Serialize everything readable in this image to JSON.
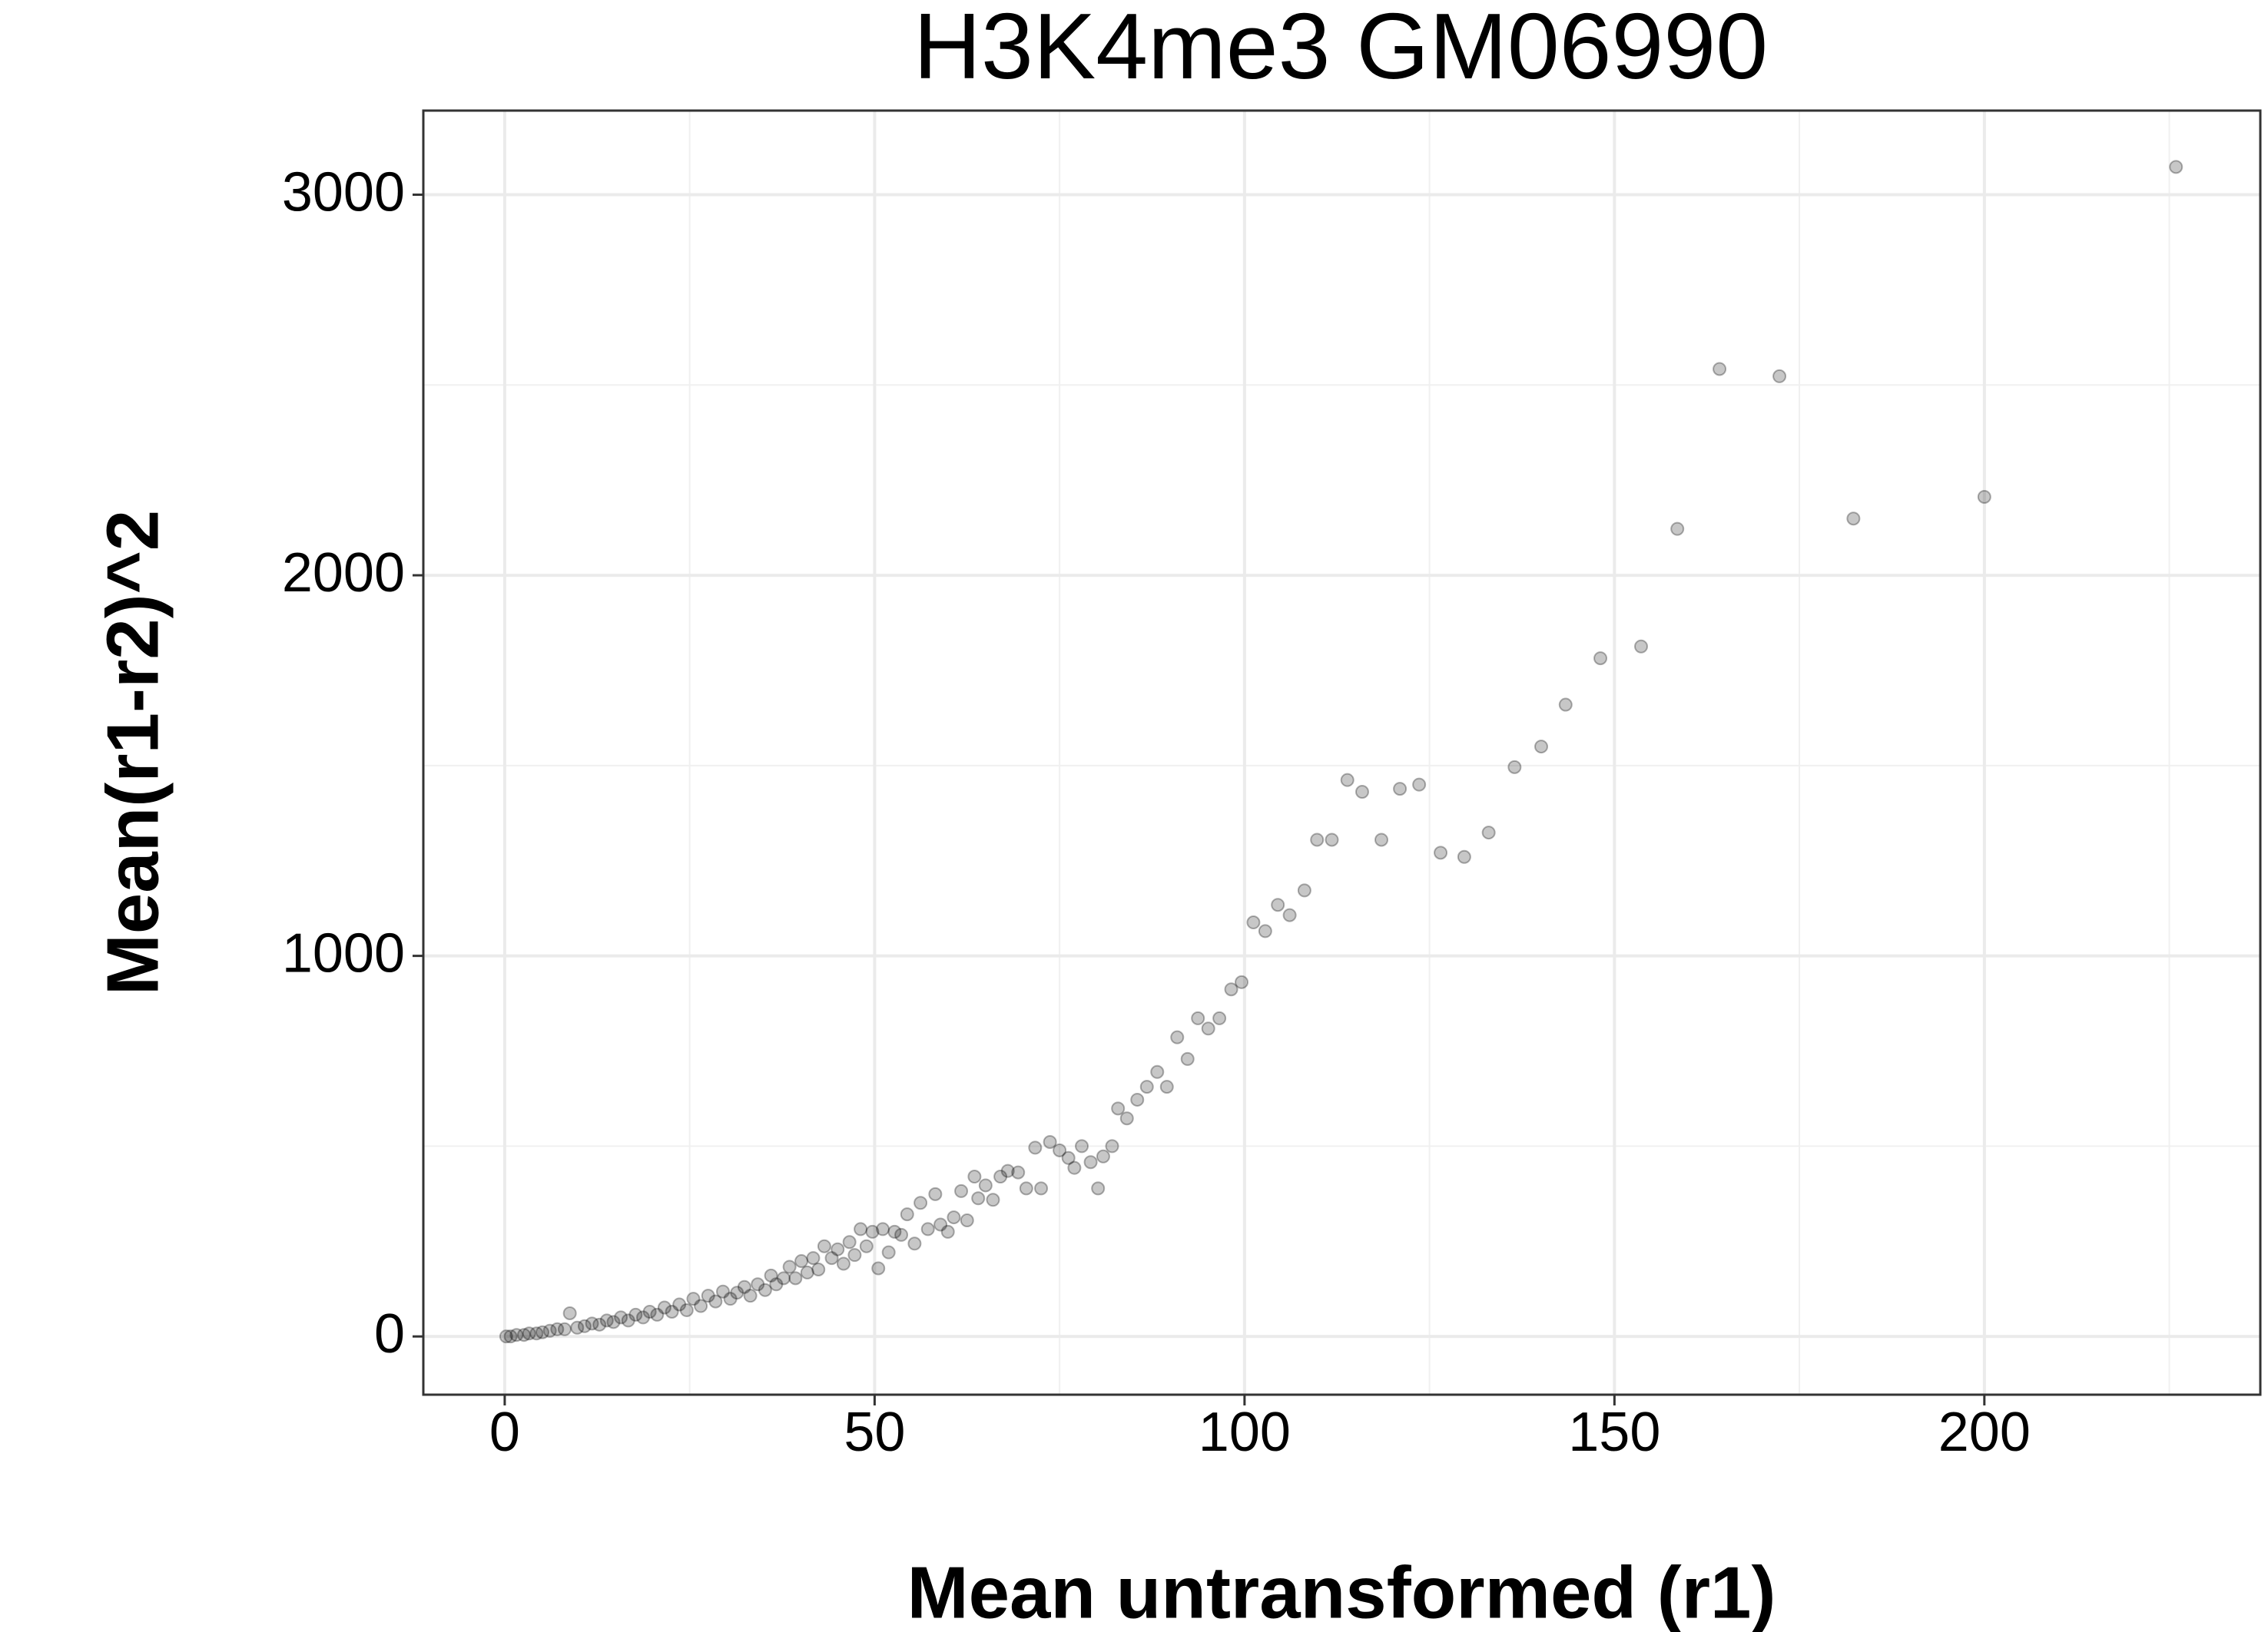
{
  "chart_data": {
    "type": "scatter",
    "title": "H3K4me3 GM06990",
    "x_label": "Mean untransformed (r1)",
    "y_label": "Mean(r1-r2)^2",
    "xlim": [
      -11,
      237.3
    ],
    "ylim": [
      -153,
      3221
    ],
    "xticks": [
      0,
      50,
      100,
      150,
      200
    ],
    "yticks": [
      0,
      1000,
      2000,
      3000
    ],
    "x_minor_ticks": [
      25,
      75,
      125,
      175,
      225
    ],
    "y_minor_ticks": [
      500,
      1500,
      2500
    ],
    "grid": true,
    "color": "#000000",
    "x": [
      225.9,
      164.2,
      172.3,
      182.3,
      200.0,
      158.5,
      153.6,
      148.1,
      143.4,
      140.1,
      136.5,
      133.0,
      129.7,
      126.5,
      123.6,
      121.0,
      118.5,
      115.9,
      113.9,
      111.8,
      109.8,
      108.1,
      106.1,
      104.5,
      102.8,
      101.2,
      99.6,
      98.2,
      96.6,
      95.1,
      93.7,
      92.3,
      90.9,
      89.5,
      88.2,
      86.8,
      85.5,
      84.1,
      82.9,
      82.1,
      80.9,
      80.2,
      79.2,
      78.0,
      77.0,
      76.2,
      75.0,
      73.7,
      72.5,
      71.7,
      70.5,
      69.4,
      68.0,
      67.0,
      66.0,
      65.0,
      64.0,
      63.5,
      62.5,
      61.7,
      60.7,
      59.9,
      58.9,
      58.2,
      57.2,
      56.2,
      55.4,
      54.4,
      53.6,
      52.7,
      51.9,
      51.1,
      50.5,
      49.7,
      48.9,
      48.1,
      47.3,
      46.6,
      45.8,
      45.0,
      44.2,
      43.2,
      42.4,
      41.7,
      40.9,
      40.1,
      39.3,
      38.5,
      37.7,
      36.7,
      36.0,
      35.2,
      34.2,
      33.2,
      32.4,
      31.4,
      30.5,
      29.5,
      28.5,
      27.5,
      26.5,
      25.5,
      24.6,
      23.6,
      22.6,
      21.6,
      20.6,
      19.6,
      18.7,
      17.7,
      16.7,
      15.7,
      14.7,
      13.8,
      12.8,
      11.8,
      10.8,
      9.8,
      8.8,
      8.1,
      7.1,
      6.1,
      5.1,
      4.3,
      3.3,
      2.6,
      1.6,
      0.8,
      0.2
    ],
    "values": [
      3073,
      2542,
      2523,
      2149,
      2206,
      2122,
      1813,
      1782,
      1660,
      1550,
      1496,
      1324,
      1260,
      1271,
      1450,
      1439,
      1305,
      1431,
      1462,
      1305,
      1305,
      1172,
      1107,
      1134,
      1065,
      1088,
      931,
      912,
      836,
      809,
      836,
      729,
      786,
      656,
      695,
      656,
      622,
      573,
      599,
      500,
      473,
      389,
      458,
      500,
      443,
      469,
      489,
      511,
      389,
      496,
      389,
      431,
      435,
      420,
      359,
      397,
      363,
      420,
      305,
      382,
      313,
      275,
      294,
      374,
      282,
      351,
      244,
      321,
      267,
      275,
      221,
      282,
      179,
      275,
      237,
      282,
      214,
      248,
      191,
      229,
      206,
      237,
      176,
      206,
      168,
      198,
      153,
      183,
      153,
      137,
      160,
      122,
      137,
      107,
      130,
      115,
      99,
      118,
      92,
      107,
      80,
      99,
      69,
      84,
      65,
      76,
      57,
      65,
      50,
      57,
      42,
      50,
      38,
      42,
      31,
      34,
      27,
      23,
      61,
      19,
      19,
      15,
      11,
      8,
      8,
      4,
      4,
      0,
      0
    ]
  }
}
